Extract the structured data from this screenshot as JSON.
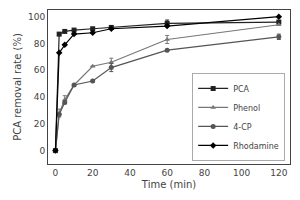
{
  "chart_data": {
    "type": "line",
    "x_label": "Time (min)",
    "y_label": "PCA removal rate (%)",
    "xlim": [
      -4,
      126
    ],
    "ylim": [
      -10,
      105
    ],
    "xticks": [
      0,
      20,
      40,
      60,
      80,
      100,
      120
    ],
    "yticks": [
      0,
      20,
      40,
      60,
      80,
      100
    ],
    "grid": false,
    "legend": "lower right",
    "series": [
      {
        "name": "PCA",
        "color": "#222222",
        "marker": "square",
        "line_style": "solid",
        "x": [
          0,
          2,
          5,
          10,
          20,
          30,
          60,
          120
        ],
        "values": [
          0,
          87,
          89,
          90,
          91,
          92,
          95,
          96
        ],
        "errors": [
          0,
          0,
          0,
          0,
          0,
          0,
          2.5,
          0
        ]
      },
      {
        "name": "Phenol",
        "color": "#777777",
        "marker": "triangle-up",
        "line_style": "solid",
        "x": [
          0,
          2,
          5,
          10,
          20,
          30,
          60,
          120
        ],
        "values": [
          0,
          28,
          38,
          49,
          63,
          66,
          83,
          94
        ],
        "errors": [
          0,
          3,
          3,
          0,
          0,
          3,
          3,
          0
        ]
      },
      {
        "name": "4-CP",
        "color": "#555555",
        "marker": "circle",
        "line_style": "solid",
        "x": [
          0,
          2,
          5,
          10,
          20,
          30,
          60,
          120
        ],
        "values": [
          0,
          27,
          36,
          49,
          52,
          62,
          75,
          85
        ],
        "errors": [
          0,
          0,
          0,
          0,
          0,
          3,
          0,
          2
        ]
      },
      {
        "name": "Rhodamine",
        "color": "#000000",
        "marker": "diamond",
        "line_style": "solid",
        "x": [
          0,
          2,
          5,
          10,
          20,
          30,
          60,
          120
        ],
        "values": [
          0,
          73,
          79,
          87,
          88,
          91,
          93,
          100
        ],
        "errors": [
          0,
          0,
          0,
          0,
          0,
          0,
          0,
          0
        ]
      }
    ]
  }
}
